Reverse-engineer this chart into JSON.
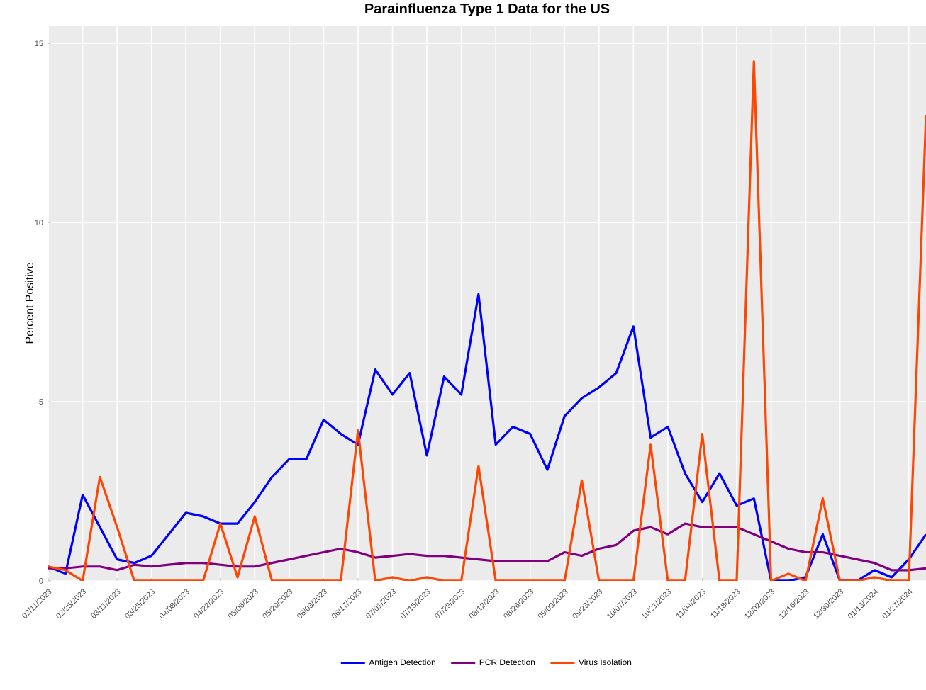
{
  "chart_data": {
    "type": "line",
    "title": "Parainfluenza Type 1 Data for the US",
    "ylabel": "Percent Positive",
    "x": [
      "2023-02-11",
      "2023-02-18",
      "2023-02-25",
      "2023-03-04",
      "2023-03-11",
      "2023-03-18",
      "2023-03-25",
      "2023-04-01",
      "2023-04-08",
      "2023-04-15",
      "2023-04-22",
      "2023-04-29",
      "2023-05-06",
      "2023-05-13",
      "2023-05-20",
      "2023-05-27",
      "2023-06-03",
      "2023-06-10",
      "2023-06-17",
      "2023-06-24",
      "2023-07-01",
      "2023-07-08",
      "2023-07-15",
      "2023-07-22",
      "2023-07-29",
      "2023-08-05",
      "2023-08-12",
      "2023-08-19",
      "2023-08-26",
      "2023-09-02",
      "2023-09-09",
      "2023-09-16",
      "2023-09-23",
      "2023-09-30",
      "2023-10-07",
      "2023-10-14",
      "2023-10-21",
      "2023-10-28",
      "2023-11-04",
      "2023-11-11",
      "2023-11-18",
      "2023-11-25",
      "2023-12-02",
      "2023-12-09",
      "2023-12-16",
      "2023-12-23",
      "2023-12-30",
      "2024-01-06",
      "2024-01-13",
      "2024-01-20",
      "2024-01-27",
      "2024-02-03"
    ],
    "series": [
      {
        "name": "Antigen Detection",
        "color": "#0000ff",
        "values": [
          0.4,
          0.2,
          2.4,
          1.5,
          0.6,
          0.5,
          0.7,
          1.3,
          1.9,
          1.8,
          1.6,
          1.6,
          2.2,
          2.9,
          3.4,
          3.4,
          4.5,
          4.1,
          3.8,
          5.9,
          5.2,
          5.8,
          3.5,
          5.7,
          5.2,
          8.0,
          3.8,
          4.3,
          4.1,
          3.1,
          4.6,
          5.1,
          5.4,
          5.8,
          7.1,
          4.0,
          4.3,
          3.0,
          2.2,
          3.0,
          2.1,
          2.3,
          0,
          0,
          0.1,
          1.3,
          0,
          0,
          0.3,
          0.1,
          0.6,
          1.3
        ]
      },
      {
        "name": "PCR Detection",
        "color": "#800080",
        "values": [
          0.35,
          0.35,
          0.4,
          0.4,
          0.3,
          0.45,
          0.4,
          0.45,
          0.5,
          0.5,
          0.45,
          0.4,
          0.4,
          0.5,
          0.6,
          0.7,
          0.8,
          0.9,
          0.8,
          0.65,
          0.7,
          0.75,
          0.7,
          0.7,
          0.65,
          0.6,
          0.55,
          0.55,
          0.55,
          0.55,
          0.8,
          0.7,
          0.9,
          1.0,
          1.4,
          1.5,
          1.3,
          1.6,
          1.5,
          1.5,
          1.5,
          1.3,
          1.1,
          0.9,
          0.8,
          0.8,
          0.7,
          0.6,
          0.5,
          0.3,
          0.3,
          0.35
        ]
      },
      {
        "name": "Virus Isolation",
        "color": "#ff4500",
        "values": [
          0.4,
          0.3,
          0,
          2.9,
          1.5,
          0,
          0,
          0,
          0,
          0,
          1.6,
          0.1,
          1.8,
          0,
          0,
          0,
          0,
          0,
          4.2,
          0,
          0.1,
          0,
          0.1,
          0,
          0,
          3.2,
          0,
          0,
          0,
          0,
          0,
          2.8,
          0,
          0,
          0,
          3.8,
          0,
          0,
          4.1,
          0,
          0,
          14.5,
          0,
          0.2,
          0,
          2.3,
          0,
          0,
          0.1,
          0,
          0,
          13
        ]
      }
    ],
    "xlim": [
      "2023-02-11",
      "2024-02-03"
    ],
    "xticks": [
      {
        "value": "2023-02-11",
        "label": "02/11/2023"
      },
      {
        "value": "2023-02-25",
        "label": "02/25/2023"
      },
      {
        "value": "2023-03-11",
        "label": "03/11/2023"
      },
      {
        "value": "2023-03-25",
        "label": "03/25/2023"
      },
      {
        "value": "2023-04-08",
        "label": "04/08/2023"
      },
      {
        "value": "2023-04-22",
        "label": "04/22/2023"
      },
      {
        "value": "2023-05-06",
        "label": "05/06/2023"
      },
      {
        "value": "2023-05-20",
        "label": "05/20/2023"
      },
      {
        "value": "2023-06-03",
        "label": "06/03/2023"
      },
      {
        "value": "2023-06-17",
        "label": "06/17/2023"
      },
      {
        "value": "2023-07-01",
        "label": "07/01/2023"
      },
      {
        "value": "2023-07-15",
        "label": "07/15/2023"
      },
      {
        "value": "2023-07-29",
        "label": "07/29/2023"
      },
      {
        "value": "2023-08-12",
        "label": "08/12/2023"
      },
      {
        "value": "2023-08-26",
        "label": "08/26/2023"
      },
      {
        "value": "2023-09-09",
        "label": "09/09/2023"
      },
      {
        "value": "2023-09-23",
        "label": "09/23/2023"
      },
      {
        "value": "2023-10-07",
        "label": "10/07/2023"
      },
      {
        "value": "2023-10-21",
        "label": "10/21/2023"
      },
      {
        "value": "2023-11-04",
        "label": "11/04/2023"
      },
      {
        "value": "2023-11-18",
        "label": "11/18/2023"
      },
      {
        "value": "2023-12-02",
        "label": "12/02/2023"
      },
      {
        "value": "2023-12-16",
        "label": "12/16/2023"
      },
      {
        "value": "2023-12-30",
        "label": "12/30/2023"
      },
      {
        "value": "2024-01-13",
        "label": "01/13/2024"
      },
      {
        "value": "2024-01-27",
        "label": "01/27/2024"
      }
    ],
    "ylim": [
      0,
      15.5
    ],
    "yticks": [
      0,
      5,
      10,
      15
    ],
    "grid": true,
    "legend": "bottom",
    "line_style": "solid"
  }
}
